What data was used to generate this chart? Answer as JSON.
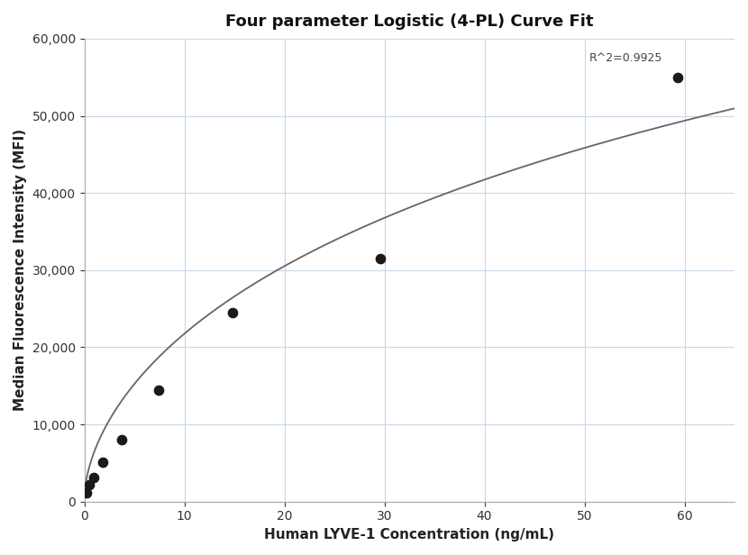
{
  "title": "Four parameter Logistic (4-PL) Curve Fit",
  "xlabel": "Human LYVE-1 Concentration (ng/mL)",
  "ylabel": "Median Fluorescence Intensity (MFI)",
  "scatter_x": [
    0.23,
    0.46,
    0.93,
    1.85,
    3.7,
    7.4,
    14.8,
    29.6,
    59.3
  ],
  "scatter_y": [
    1100,
    2200,
    3100,
    5100,
    8000,
    14500,
    24500,
    31500,
    55000
  ],
  "xlim": [
    0,
    65
  ],
  "ylim": [
    0,
    60000
  ],
  "xticks": [
    0,
    10,
    20,
    30,
    40,
    50,
    60
  ],
  "yticks": [
    0,
    10000,
    20000,
    30000,
    40000,
    50000,
    60000
  ],
  "r_squared": "R^2=0.9925",
  "r2_x": 50.5,
  "r2_y": 57500,
  "curve_color": "#666666",
  "scatter_color": "#1a1a1a",
  "grid_color": "#c8d8e8",
  "bg_color": "#ffffff",
  "title_fontsize": 13,
  "label_fontsize": 11,
  "tick_fontsize": 10,
  "scatter_size": 55
}
